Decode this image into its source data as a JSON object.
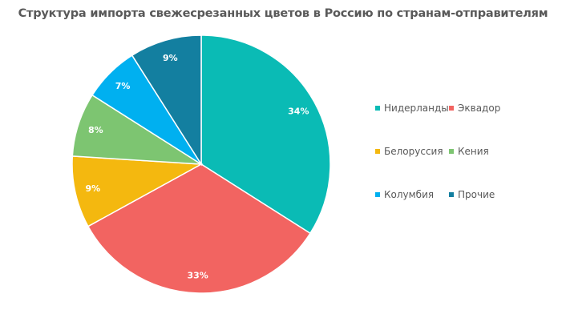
{
  "chart_data": {
    "type": "pie",
    "title": "Структура импорта свежесрезанных цветов в Россию по странам-отправителям",
    "categories": [
      "Нидерланды",
      "Эквадор",
      "Белоруссия",
      "Кения",
      "Колумбия",
      "Прочие"
    ],
    "values": [
      34,
      33,
      9,
      8,
      7,
      9
    ],
    "labels": [
      "34%",
      "33%",
      "9%",
      "8%",
      "7%",
      "9%"
    ],
    "colors": [
      "#0ABBB5",
      "#F26461",
      "#F4B80F",
      "#7DC571",
      "#00B0F0",
      "#137FA0"
    ],
    "start": "top",
    "direction": "clockwise",
    "legend": "right"
  }
}
